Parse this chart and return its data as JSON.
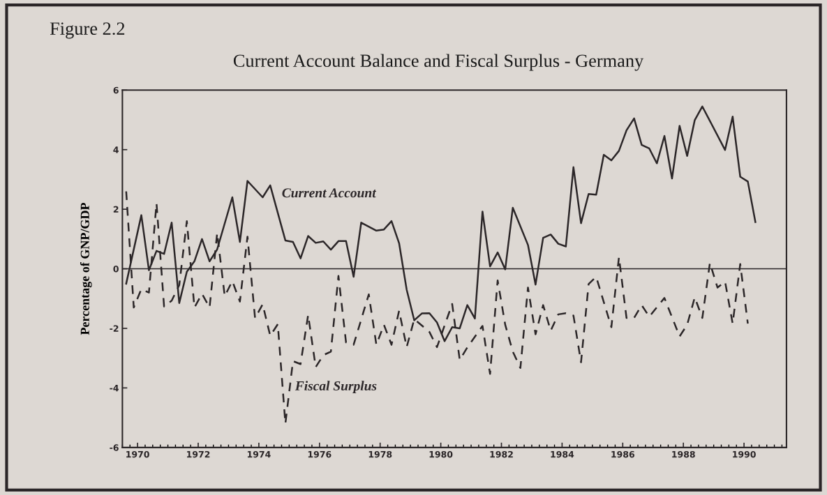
{
  "chart_data": {
    "type": "line",
    "title": "Current Account Balance and Fiscal Surplus - Germany",
    "ylabel": "Percentage of GNP/GDP",
    "annotations": [
      "Figure 2.2"
    ],
    "xlim": [
      1969.5,
      1991.4
    ],
    "xticks": [
      1970,
      1972,
      1974,
      1976,
      1978,
      1980,
      1982,
      1984,
      1986,
      1988,
      1990
    ],
    "ylim": [
      -6,
      6
    ],
    "yticks": [
      -6,
      -4,
      -2,
      0,
      2,
      4,
      6
    ],
    "grid": false,
    "legend": false,
    "ref_lines": [
      {
        "axis": "y",
        "value": 0,
        "color": "#2b2628",
        "line_style": "solid"
      }
    ],
    "series": [
      {
        "name": "Current Account",
        "color": "#2b2628",
        "line_style": "solid",
        "x": [
          1969.625,
          1970.125,
          1970.375,
          1970.625,
          1970.875,
          1971.125,
          1971.375,
          1971.625,
          1971.875,
          1972.125,
          1972.375,
          1972.625,
          1973.125,
          1973.375,
          1973.625,
          1974.125,
          1974.375,
          1974.875,
          1975.125,
          1975.375,
          1975.625,
          1975.875,
          1976.125,
          1976.375,
          1976.625,
          1976.875,
          1977.125,
          1977.375,
          1977.875,
          1978.125,
          1978.375,
          1978.625,
          1978.875,
          1979.125,
          1979.375,
          1979.625,
          1979.875,
          1980.125,
          1980.375,
          1980.625,
          1980.875,
          1981.125,
          1981.375,
          1981.625,
          1981.875,
          1982.125,
          1982.375,
          1982.875,
          1983.125,
          1983.375,
          1983.625,
          1983.875,
          1984.125,
          1984.375,
          1984.625,
          1984.875,
          1985.125,
          1985.375,
          1985.625,
          1985.875,
          1986.125,
          1986.375,
          1986.625,
          1986.875,
          1987.125,
          1987.375,
          1987.625,
          1987.875,
          1988.125,
          1988.375,
          1988.625,
          1989.375,
          1989.625,
          1989.875,
          1990.125,
          1990.375
        ],
        "values": [
          -0.5,
          1.8,
          -0.05,
          0.6,
          0.5,
          1.55,
          -1.15,
          -0.1,
          0.25,
          1.0,
          0.25,
          0.65,
          2.4,
          0.9,
          2.95,
          2.4,
          2.8,
          0.95,
          0.9,
          0.35,
          1.1,
          0.87,
          0.92,
          0.64,
          0.93,
          0.93,
          -0.27,
          1.55,
          1.28,
          1.32,
          1.6,
          0.86,
          -0.7,
          -1.73,
          -1.5,
          -1.49,
          -1.8,
          -2.43,
          -1.96,
          -2.0,
          -1.22,
          -1.67,
          1.92,
          0.08,
          0.55,
          -0.02,
          2.05,
          0.8,
          -0.53,
          1.04,
          1.15,
          0.84,
          0.75,
          3.41,
          1.53,
          2.51,
          2.49,
          3.83,
          3.64,
          3.96,
          4.65,
          5.05,
          4.16,
          4.04,
          3.54,
          4.46,
          3.03,
          4.8,
          3.79,
          4.99,
          5.45,
          3.99,
          5.11,
          3.09,
          2.93,
          1.57
        ]
      },
      {
        "name": "Fiscal Surplus",
        "color": "#2b2628",
        "line_style": "dashed",
        "x": [
          1969.625,
          1969.875,
          1970.125,
          1970.375,
          1970.625,
          1970.875,
          1971.125,
          1971.375,
          1971.625,
          1971.875,
          1972.125,
          1972.375,
          1972.625,
          1972.875,
          1973.125,
          1973.375,
          1973.625,
          1973.875,
          1974.125,
          1974.375,
          1974.625,
          1974.875,
          1975.125,
          1975.375,
          1975.625,
          1975.875,
          1976.125,
          1976.375,
          1976.625,
          1976.875,
          1977.125,
          1977.625,
          1977.875,
          1978.125,
          1978.375,
          1978.625,
          1978.875,
          1979.125,
          1979.625,
          1979.875,
          1980.375,
          1980.625,
          1980.875,
          1981.375,
          1981.625,
          1981.875,
          1982.125,
          1982.375,
          1982.625,
          1982.875,
          1983.125,
          1983.375,
          1983.625,
          1983.875,
          1984.125,
          1984.375,
          1984.625,
          1984.875,
          1985.125,
          1985.625,
          1985.875,
          1986.125,
          1986.375,
          1986.625,
          1986.875,
          1987.375,
          1987.875,
          1988.125,
          1988.375,
          1988.625,
          1988.875,
          1989.125,
          1989.375,
          1989.625,
          1989.875,
          1990.125
        ],
        "values": [
          2.6,
          -1.3,
          -0.68,
          -0.8,
          2.2,
          -1.27,
          -1.07,
          -0.55,
          1.6,
          -1.3,
          -0.84,
          -1.3,
          1.2,
          -0.92,
          -0.41,
          -1.1,
          1.08,
          -1.66,
          -1.19,
          -2.25,
          -1.86,
          -5.2,
          -3.1,
          -3.2,
          -1.55,
          -3.3,
          -2.9,
          -2.78,
          -0.24,
          -2.47,
          -2.55,
          -0.86,
          -2.55,
          -1.88,
          -2.55,
          -1.41,
          -2.63,
          -1.69,
          -2.12,
          -2.63,
          -1.18,
          -3.06,
          -2.64,
          -1.92,
          -3.53,
          -0.39,
          -1.88,
          -2.78,
          -3.33,
          -0.63,
          -2.2,
          -1.22,
          -2.08,
          -1.53,
          -1.49,
          -1.57,
          -3.14,
          -0.51,
          -0.27,
          -1.96,
          0.39,
          -1.65,
          -1.65,
          -1.22,
          -1.61,
          -0.98,
          -2.27,
          -1.88,
          -0.96,
          -1.65,
          0.2,
          -0.63,
          -0.43,
          -1.84,
          0.16,
          -1.84
        ]
      }
    ]
  }
}
